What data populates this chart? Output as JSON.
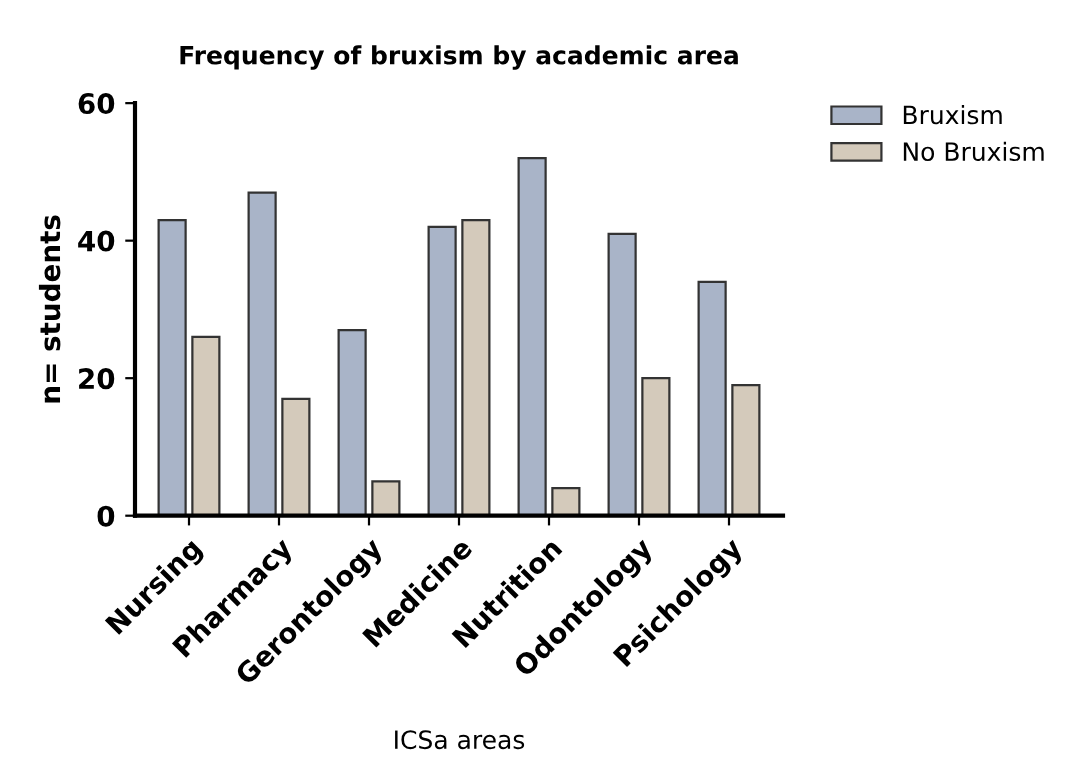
{
  "chart_data": {
    "type": "bar",
    "title": "Frequency of bruxism by academic area",
    "xlabel": "ICSa areas",
    "ylabel": "n= students",
    "categories": [
      "Nursing",
      "Pharmacy",
      "Gerontology",
      "Medicine",
      "Nutrition",
      "Odontology",
      "Psichology"
    ],
    "series": [
      {
        "name": "Bruxism",
        "color": "#a9b4c8",
        "values": [
          43,
          47,
          27,
          42,
          52,
          41,
          34
        ]
      },
      {
        "name": "No Bruxism",
        "color": "#d4cabb",
        "values": [
          26,
          17,
          5,
          43,
          4,
          20,
          19
        ]
      }
    ],
    "ylim": [
      0,
      60
    ],
    "yticks": [
      0,
      20,
      40,
      60
    ],
    "grid": false,
    "legend": "top right"
  }
}
